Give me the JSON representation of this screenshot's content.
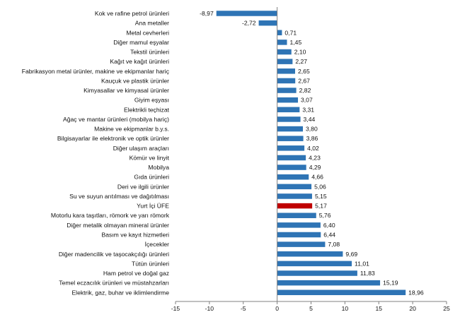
{
  "chart_data": {
    "type": "bar",
    "orientation": "horizontal",
    "title": "",
    "xlabel": "",
    "ylabel": "",
    "xlim": [
      -15,
      25
    ],
    "xticks": [
      -15,
      -10,
      -5,
      0,
      5,
      10,
      15,
      20,
      25
    ],
    "grid": false,
    "colors": {
      "default": "#2e74b5",
      "highlight": "#c00000",
      "axis": "#808080"
    },
    "highlight_category": "Yurt İçi ÜFE",
    "categories": [
      "Kok ve rafine petrol ürünleri",
      "Ana metaller",
      "Metal cevherleri",
      "Diğer mamul eşyalar",
      "Tekstil ürünleri",
      "Kağıt ve kağıt ürünleri",
      "Fabrikasyon metal ürünler, makine ve ekipmanlar hariç",
      "Kauçuk ve plastik ürünler",
      "Kimyasallar ve kimyasal ürünler",
      "Giyim eşyası",
      "Elektrikli teçhizat",
      "Ağaç ve mantar ürünleri (mobilya hariç)",
      "Makine ve ekipmanlar b.y.s.",
      "Bilgisayarlar ile elektronik ve optik ürünler",
      "Diğer ulaşım araçları",
      "Kömür ve linyit",
      "Mobilya",
      "Gıda ürünleri",
      "Deri ve ilgili ürünler",
      "Su ve suyun arıtılması ve dağıtılması",
      "Yurt İçi ÜFE",
      "Motorlu kara taşıtları, römork ve yarı römork",
      "Diğer metalik olmayan mineral ürünler",
      "Basım ve kayıt hizmetleri",
      "İçecekler",
      "Diğer madencilik ve taşocakçılığı ürünleri",
      "Tütün ürünleri",
      "Ham petrol ve doğal gaz",
      "Temel eczacılık ürünleri ve müstahzarları",
      "Elektrik, gaz, buhar ve iklimlendirme"
    ],
    "values": [
      -8.97,
      -2.72,
      0.71,
      1.45,
      2.1,
      2.27,
      2.65,
      2.67,
      2.82,
      3.07,
      3.31,
      3.44,
      3.8,
      3.86,
      4.02,
      4.23,
      4.29,
      4.66,
      5.06,
      5.15,
      5.17,
      5.76,
      6.4,
      6.44,
      7.08,
      9.69,
      11.01,
      11.83,
      15.19,
      18.96
    ],
    "value_labels": [
      "-8,97",
      "-2,72",
      "0,71",
      "1,45",
      "2,10",
      "2,27",
      "2,65",
      "2,67",
      "2,82",
      "3,07",
      "3,31",
      "3,44",
      "3,80",
      "3,86",
      "4,02",
      "4,23",
      "4,29",
      "4,66",
      "5,06",
      "5,15",
      "5,17",
      "5,76",
      "6,40",
      "6,44",
      "7,08",
      "9,69",
      "11,01",
      "11,83",
      "15,19",
      "18,96"
    ]
  }
}
